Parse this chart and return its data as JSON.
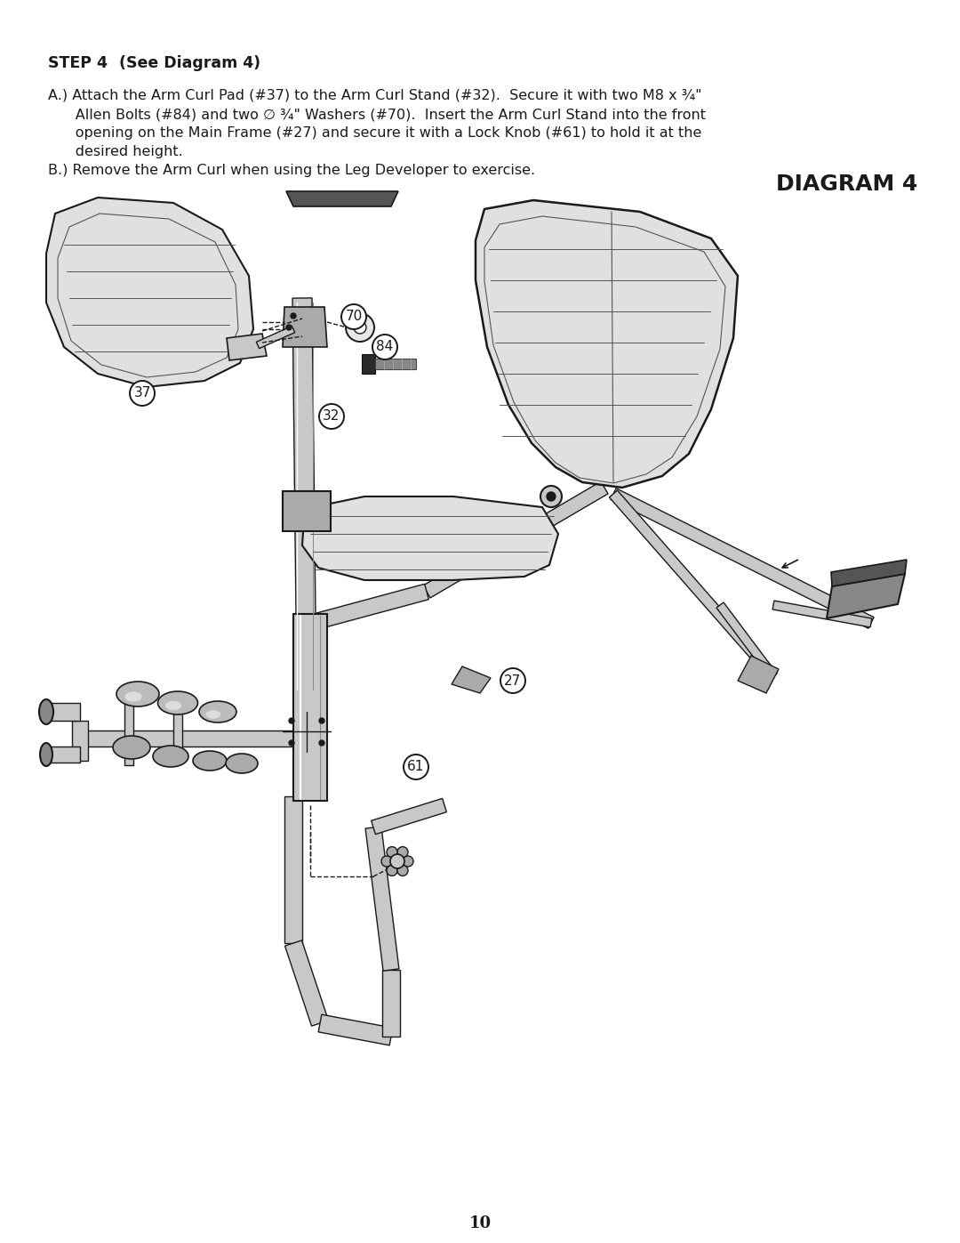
{
  "background_color": "#ffffff",
  "page_number": "10",
  "step_title_bold": "STEP 4",
  "step_title_normal": "   (See Diagram 4)",
  "diagram_title": "DIAGRAM 4",
  "line_A1": "A.) Attach the Arm Curl Pad (#37) to the Arm Curl Stand (#32).  Secure it with two M8 x ¾\"",
  "line_A2": "      Allen Bolts (#84) and two ∅ ¾\" Washers (#70).  Insert the Arm Curl Stand into the front",
  "line_A3": "      opening on the Main Frame (#27) and secure it with a Lock Knob (#61) to hold it at the",
  "line_A4": "      desired height.",
  "line_B": "B.) Remove the Arm Curl when using the Leg Developer to exercise.",
  "dark": "#1a1a1a",
  "mid": "#555555",
  "light_gray": "#aaaaaa",
  "pad_fill": "#e0e0e0",
  "frame_fill": "#d0d0d0",
  "tube_fill": "#c8c8c8"
}
